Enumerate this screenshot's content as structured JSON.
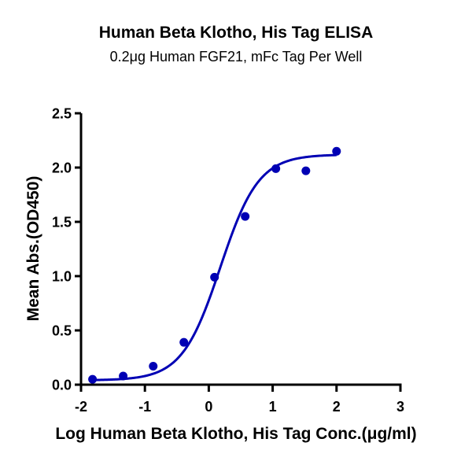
{
  "chart_data": {
    "type": "scatter",
    "title": "Human Beta Klotho, His Tag ELISA",
    "subtitle": "0.2μg Human FGF21, mFc Tag Per Well",
    "xlabel": "Log Human Beta Klotho, His Tag Conc.(μg/ml)",
    "ylabel": "Mean Abs.(OD450)",
    "xlim": [
      -2,
      3
    ],
    "ylim": [
      0,
      2.5
    ],
    "xticks": [
      "-2",
      "-1",
      "0",
      "1",
      "2",
      "3"
    ],
    "yticks": [
      "0.0",
      "0.5",
      "1.0",
      "1.5",
      "2.0",
      "2.5"
    ],
    "grid": false,
    "legend": null,
    "series": [
      {
        "name": "Human Beta Klotho, His Tag",
        "color": "#0000B4",
        "marker": "circle",
        "fit": "4PL sigmoid curve",
        "x": [
          -1.82,
          -1.34,
          -0.87,
          -0.39,
          0.09,
          0.57,
          1.05,
          1.52,
          2.0
        ],
        "y": [
          0.05,
          0.08,
          0.17,
          0.39,
          0.99,
          1.55,
          1.99,
          1.97,
          2.15
        ]
      }
    ]
  }
}
